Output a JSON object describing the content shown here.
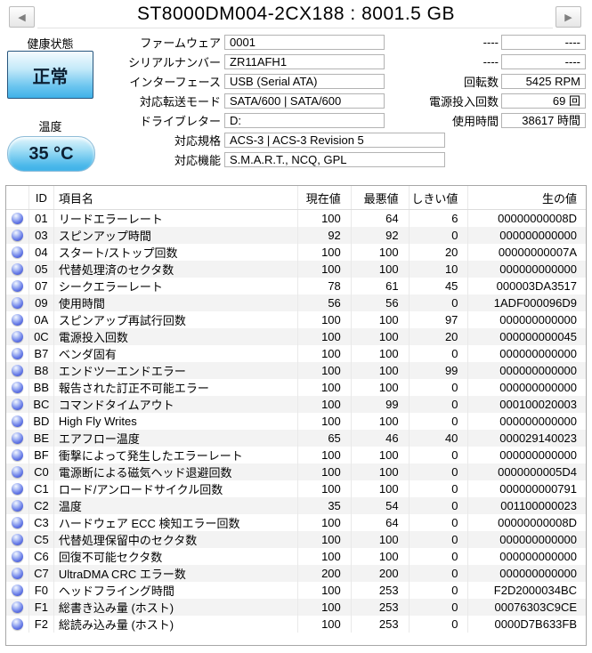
{
  "window": {
    "title": "ST8000DM004-2CX188 : 8001.5 GB",
    "prev_arrow": "◀",
    "next_arrow": "▶"
  },
  "health": {
    "label": "健康状態",
    "status": "正常"
  },
  "temperature": {
    "label": "温度",
    "value": "35 °C"
  },
  "info_fields": [
    {
      "label": "ファームウェア",
      "value": "0001"
    },
    {
      "label": "シリアルナンバー",
      "value": "ZR11AFH1"
    },
    {
      "label": "インターフェース",
      "value": "USB (Serial ATA)"
    },
    {
      "label": "対応転送モード",
      "value": "SATA/600 | SATA/600"
    },
    {
      "label": "ドライブレター",
      "value": "D:"
    },
    {
      "label": "対応規格",
      "value": "ACS-3 | ACS-3 Revision 5"
    },
    {
      "label": "対応機能",
      "value": "S.M.A.R.T., NCQ, GPL"
    }
  ],
  "right_fields": [
    {
      "label": "----",
      "value": "----"
    },
    {
      "label": "----",
      "value": "----"
    },
    {
      "label": "回転数",
      "value": "5425 RPM"
    },
    {
      "label": "電源投入回数",
      "value": "69 回"
    },
    {
      "label": "使用時間",
      "value": "38617 時間"
    }
  ],
  "smart_table": {
    "headers": {
      "id": "ID",
      "name": "項目名",
      "current": "現在値",
      "worst": "最悪値",
      "threshold": "しきい値",
      "raw": "生の値"
    },
    "rows": [
      {
        "id": "01",
        "name": "リードエラーレート",
        "current": "100",
        "worst": "64",
        "threshold": "6",
        "raw": "00000000008D"
      },
      {
        "id": "03",
        "name": "スピンアップ時間",
        "current": "92",
        "worst": "92",
        "threshold": "0",
        "raw": "000000000000"
      },
      {
        "id": "04",
        "name": "スタート/ストップ回数",
        "current": "100",
        "worst": "100",
        "threshold": "20",
        "raw": "00000000007A"
      },
      {
        "id": "05",
        "name": "代替処理済のセクタ数",
        "current": "100",
        "worst": "100",
        "threshold": "10",
        "raw": "000000000000"
      },
      {
        "id": "07",
        "name": "シークエラーレート",
        "current": "78",
        "worst": "61",
        "threshold": "45",
        "raw": "000003DA3517"
      },
      {
        "id": "09",
        "name": "使用時間",
        "current": "56",
        "worst": "56",
        "threshold": "0",
        "raw": "1ADF000096D9"
      },
      {
        "id": "0A",
        "name": "スピンアップ再試行回数",
        "current": "100",
        "worst": "100",
        "threshold": "97",
        "raw": "000000000000"
      },
      {
        "id": "0C",
        "name": "電源投入回数",
        "current": "100",
        "worst": "100",
        "threshold": "20",
        "raw": "000000000045"
      },
      {
        "id": "B7",
        "name": "ベンダ固有",
        "current": "100",
        "worst": "100",
        "threshold": "0",
        "raw": "000000000000"
      },
      {
        "id": "B8",
        "name": "エンドツーエンドエラー",
        "current": "100",
        "worst": "100",
        "threshold": "99",
        "raw": "000000000000"
      },
      {
        "id": "BB",
        "name": "報告された訂正不可能エラー",
        "current": "100",
        "worst": "100",
        "threshold": "0",
        "raw": "000000000000"
      },
      {
        "id": "BC",
        "name": "コマンドタイムアウト",
        "current": "100",
        "worst": "99",
        "threshold": "0",
        "raw": "000100020003"
      },
      {
        "id": "BD",
        "name": "High Fly Writes",
        "current": "100",
        "worst": "100",
        "threshold": "0",
        "raw": "000000000000"
      },
      {
        "id": "BE",
        "name": "エアフロー温度",
        "current": "65",
        "worst": "46",
        "threshold": "40",
        "raw": "000029140023"
      },
      {
        "id": "BF",
        "name": "衝撃によって発生したエラーレート",
        "current": "100",
        "worst": "100",
        "threshold": "0",
        "raw": "000000000000"
      },
      {
        "id": "C0",
        "name": "電源断による磁気ヘッド退避回数",
        "current": "100",
        "worst": "100",
        "threshold": "0",
        "raw": "0000000005D4"
      },
      {
        "id": "C1",
        "name": "ロード/アンロードサイクル回数",
        "current": "100",
        "worst": "100",
        "threshold": "0",
        "raw": "000000000791"
      },
      {
        "id": "C2",
        "name": "温度",
        "current": "35",
        "worst": "54",
        "threshold": "0",
        "raw": "001100000023"
      },
      {
        "id": "C3",
        "name": "ハードウェア ECC 検知エラー回数",
        "current": "100",
        "worst": "64",
        "threshold": "0",
        "raw": "00000000008D"
      },
      {
        "id": "C5",
        "name": "代替処理保留中のセクタ数",
        "current": "100",
        "worst": "100",
        "threshold": "0",
        "raw": "000000000000"
      },
      {
        "id": "C6",
        "name": "回復不可能セクタ数",
        "current": "100",
        "worst": "100",
        "threshold": "0",
        "raw": "000000000000"
      },
      {
        "id": "C7",
        "name": "UltraDMA CRC エラー数",
        "current": "200",
        "worst": "200",
        "threshold": "0",
        "raw": "000000000000"
      },
      {
        "id": "F0",
        "name": "ヘッドフライング時間",
        "current": "100",
        "worst": "253",
        "threshold": "0",
        "raw": "F2D2000034BC"
      },
      {
        "id": "F1",
        "name": "総書き込み量 (ホスト)",
        "current": "100",
        "worst": "253",
        "threshold": "0",
        "raw": "00076303C9CE"
      },
      {
        "id": "F2",
        "name": "総読み込み量 (ホスト)",
        "current": "100",
        "worst": "253",
        "threshold": "0",
        "raw": "0000D7B633FB"
      }
    ]
  },
  "colors": {
    "health_status": "#3fb1e8",
    "orb": "#4254cf",
    "stripe": "#f3f3f3",
    "table_border": "#a7a7a7"
  }
}
